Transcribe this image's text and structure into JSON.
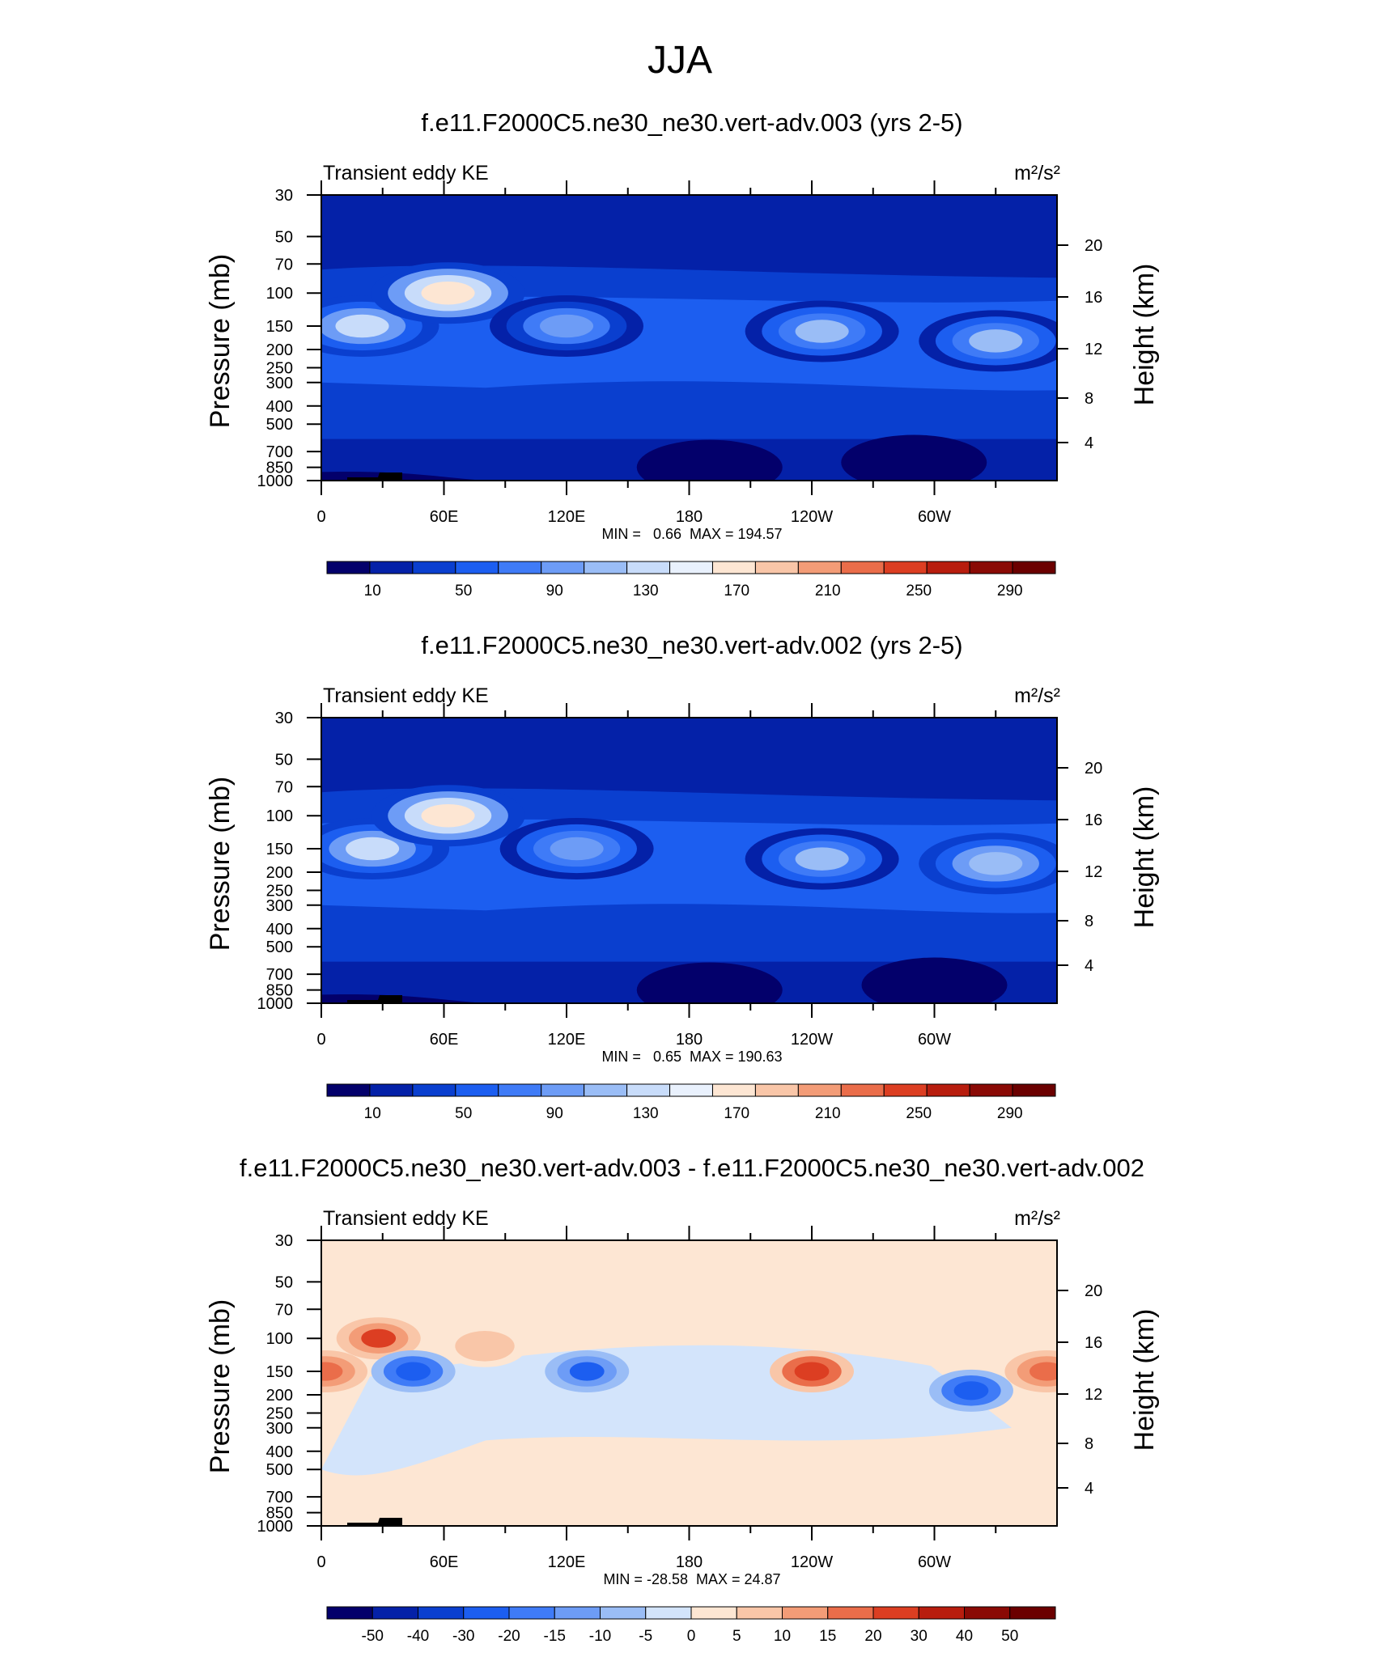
{
  "figure": {
    "title": "JJA"
  },
  "chart_data": [
    {
      "type": "heatmap",
      "title": "f.e11.F2000C5.ne30_ne30.vert-adv.003 (yrs 2-5)",
      "left_label": "Transient eddy KE",
      "units": "m²/s²",
      "ylabel": "Pressure (mb)",
      "ylabel_right": "Height (km)",
      "xlabel": "",
      "x_ticks": [
        "0",
        "60E",
        "120E",
        "180",
        "120W",
        "60W"
      ],
      "x_range": [
        0,
        360
      ],
      "y_ticks": [
        "30",
        "50",
        "70",
        "100",
        "150",
        "200",
        "250",
        "300",
        "400",
        "500",
        "700",
        "850",
        "1000"
      ],
      "y_range_mb": [
        1000,
        30
      ],
      "y_scale": "log",
      "height_ticks": [
        "20",
        "16",
        "12",
        "8",
        "4"
      ],
      "stats": "MIN =   0.66  MAX = 194.57",
      "colorbar_labels": [
        "10",
        "50",
        "90",
        "130",
        "170",
        "210",
        "250",
        "290"
      ],
      "features": [
        {
          "lon": 20,
          "p": 150,
          "value": 135
        },
        {
          "lon": 62,
          "p": 100,
          "value": 190
        },
        {
          "lon": 120,
          "p": 150,
          "value": 95
        },
        {
          "lon": 245,
          "p": 160,
          "value": 115
        },
        {
          "lon": 330,
          "p": 180,
          "value": 120
        },
        {
          "lon": 190,
          "p": 850,
          "value": 5
        },
        {
          "lon": 290,
          "p": 800,
          "value": 5
        }
      ]
    },
    {
      "type": "heatmap",
      "title": "f.e11.F2000C5.ne30_ne30.vert-adv.002 (yrs 2-5)",
      "left_label": "Transient eddy KE",
      "units": "m²/s²",
      "ylabel": "Pressure (mb)",
      "ylabel_right": "Height (km)",
      "xlabel": "",
      "x_ticks": [
        "0",
        "60E",
        "120E",
        "180",
        "120W",
        "60W"
      ],
      "x_range": [
        0,
        360
      ],
      "y_ticks": [
        "30",
        "50",
        "70",
        "100",
        "150",
        "200",
        "250",
        "300",
        "400",
        "500",
        "700",
        "850",
        "1000"
      ],
      "y_range_mb": [
        1000,
        30
      ],
      "y_scale": "log",
      "height_ticks": [
        "20",
        "16",
        "12",
        "8",
        "4"
      ],
      "stats": "MIN =   0.65  MAX = 190.63",
      "colorbar_labels": [
        "10",
        "50",
        "90",
        "130",
        "170",
        "210",
        "250",
        "290"
      ],
      "features": [
        {
          "lon": 25,
          "p": 150,
          "value": 140
        },
        {
          "lon": 62,
          "p": 100,
          "value": 185
        },
        {
          "lon": 125,
          "p": 150,
          "value": 110
        },
        {
          "lon": 245,
          "p": 170,
          "value": 120
        },
        {
          "lon": 330,
          "p": 180,
          "value": 125
        },
        {
          "lon": 190,
          "p": 850,
          "value": 5
        },
        {
          "lon": 300,
          "p": 800,
          "value": 5
        }
      ]
    },
    {
      "type": "heatmap",
      "title": "f.e11.F2000C5.ne30_ne30.vert-adv.003 - f.e11.F2000C5.ne30_ne30.vert-adv.002",
      "left_label": "Transient eddy KE",
      "units": "m²/s²",
      "ylabel": "Pressure (mb)",
      "ylabel_right": "Height (km)",
      "xlabel": "",
      "x_ticks": [
        "0",
        "60E",
        "120E",
        "180",
        "120W",
        "60W"
      ],
      "x_range": [
        0,
        360
      ],
      "y_ticks": [
        "30",
        "50",
        "70",
        "100",
        "150",
        "200",
        "250",
        "300",
        "400",
        "500",
        "700",
        "850",
        "1000"
      ],
      "y_range_mb": [
        1000,
        30
      ],
      "y_scale": "log",
      "height_ticks": [
        "20",
        "16",
        "12",
        "8",
        "4"
      ],
      "stats": "MIN = -28.58  MAX = 24.87",
      "colorbar_labels": [
        "-50",
        "-40",
        "-30",
        "-20",
        "-15",
        "-10",
        "-5",
        "0",
        "5",
        "10",
        "15",
        "20",
        "30",
        "40",
        "50"
      ],
      "features": [
        {
          "lon": 28,
          "p": 100,
          "value": 22
        },
        {
          "lon": 2,
          "p": 150,
          "value": 18
        },
        {
          "lon": 45,
          "p": 150,
          "value": -25
        },
        {
          "lon": 130,
          "p": 150,
          "value": -22
        },
        {
          "lon": 240,
          "p": 150,
          "value": 24
        },
        {
          "lon": 318,
          "p": 190,
          "value": -28
        },
        {
          "lon": 355,
          "p": 150,
          "value": 20
        },
        {
          "lon": 80,
          "p": 110,
          "value": 8
        }
      ]
    }
  ],
  "colors": {
    "full_field_scale": [
      "#03006b",
      "#0421a8",
      "#0a3fcf",
      "#1c5ef0",
      "#3f7bf7",
      "#6d9cf6",
      "#9abdf6",
      "#c8dcfa",
      "#e9f1fd",
      "#fde6d3",
      "#f9c6a8",
      "#f39c77",
      "#ea6d4a",
      "#dc3e22",
      "#b81d0e",
      "#8a0a05",
      "#6b0000"
    ],
    "difference_scale": [
      "#03006b",
      "#0421a8",
      "#0a3fcf",
      "#1c5ef0",
      "#3f7bf7",
      "#6d9cf6",
      "#9abdf6",
      "#d3e4fb",
      "#fde6d3",
      "#f9c6a8",
      "#f39c77",
      "#ea6d4a",
      "#dc3e22",
      "#b81d0e",
      "#8a0a05",
      "#6b0000"
    ],
    "topography": "#000000"
  }
}
